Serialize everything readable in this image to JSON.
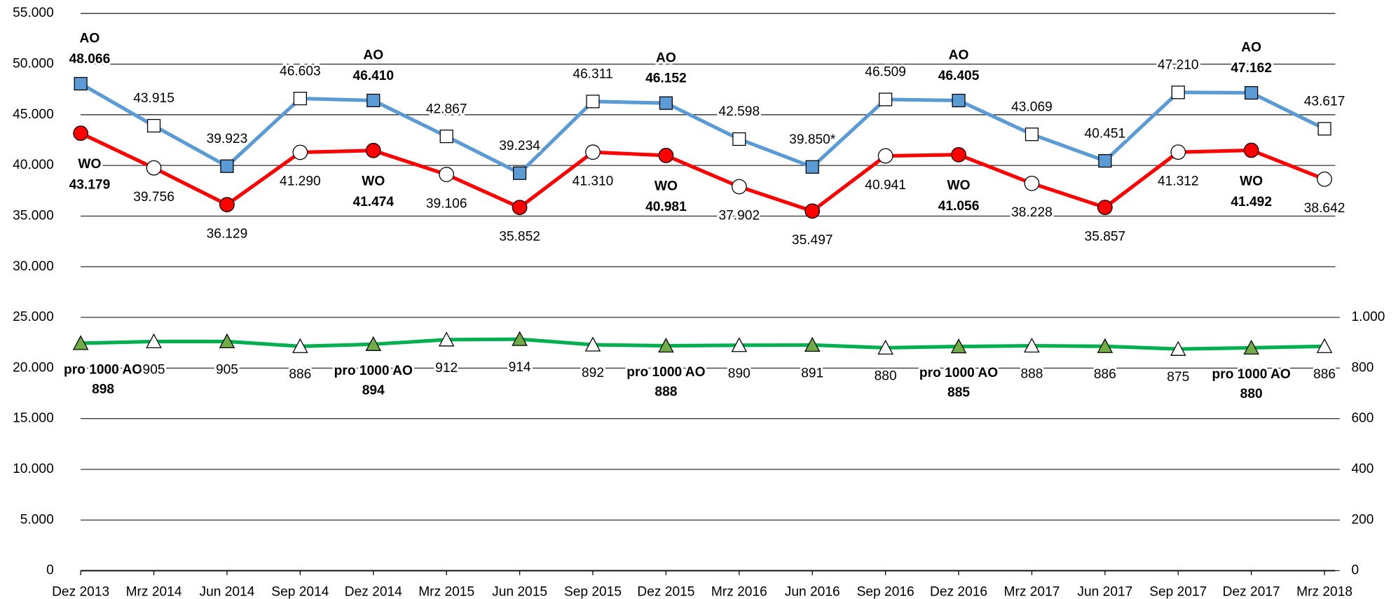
{
  "chart_data": {
    "type": "line",
    "categories": [
      "Dez 2013",
      "Mrz 2014",
      "Jun 2014",
      "Sep 2014",
      "Dez 2014",
      "Mrz 2015",
      "Jun 2015",
      "Sep 2015",
      "Dez 2015",
      "Mrz 2016",
      "Jun 2016",
      "Sep 2016",
      "Dez 2016",
      "Mrz 2017",
      "Jun 2017",
      "Sep 2017",
      "Dez 2017",
      "Mrz 2018"
    ],
    "ylim": [
      0,
      55000
    ],
    "yticks": [
      {
        "value": 0,
        "label": "0"
      },
      {
        "value": 5000,
        "label": "5.000"
      },
      {
        "value": 10000,
        "label": "10.000"
      },
      {
        "value": 15000,
        "label": "15.000"
      },
      {
        "value": 20000,
        "label": "20.000"
      },
      {
        "value": 25000,
        "label": "25.000"
      },
      {
        "value": 30000,
        "label": "30.000"
      },
      {
        "value": 35000,
        "label": "35.000"
      },
      {
        "value": 40000,
        "label": "40.000"
      },
      {
        "value": 45000,
        "label": "45.000"
      },
      {
        "value": 50000,
        "label": "50.000"
      },
      {
        "value": 55000,
        "label": "55.000"
      }
    ],
    "y2lim": [
      0,
      2200
    ],
    "y2ticks": [
      0,
      200,
      400,
      600,
      800,
      {
        "value": 1000,
        "label": "1.000"
      }
    ],
    "grid": true,
    "series": [
      {
        "name": "AO",
        "color": "#5b9bd5",
        "marker": "square",
        "values": [
          48066,
          43915,
          39923,
          46603,
          46410,
          42867,
          39234,
          46311,
          46152,
          42598,
          39850,
          46509,
          46405,
          43069,
          40451,
          47210,
          47162,
          43617
        ],
        "value_labels": [
          "48.066",
          "43.915",
          "39.923",
          "46.603",
          "46.410",
          "42.867",
          "39.234",
          "46.311",
          "46.152",
          "42.598",
          "39.850*",
          "46.509",
          "46.405",
          "43.069",
          "40.451",
          "47.210",
          "47.162",
          "43.617"
        ]
      },
      {
        "name": "WO",
        "color": "#ff0000",
        "marker": "circle",
        "values": [
          43179,
          39756,
          36129,
          41290,
          41474,
          39106,
          35852,
          41310,
          40981,
          37902,
          35497,
          40941,
          41056,
          38228,
          35857,
          41312,
          41492,
          38642
        ],
        "value_labels": [
          "43.179",
          "39.756",
          "36.129",
          "41.290",
          "41.474",
          "39.106",
          "35.852",
          "41.310",
          "40.981",
          "37.902",
          "35.497",
          "40.941",
          "41.056",
          "38.228",
          "35.857",
          "41.312",
          "41.492",
          "38.642"
        ]
      },
      {
        "name": "pro 1000 AO",
        "color": "#00b050",
        "marker_color": "#70ad47",
        "marker": "triangle",
        "axis": "y2",
        "values": [
          898,
          905,
          905,
          886,
          894,
          912,
          914,
          892,
          888,
          890,
          891,
          880,
          885,
          888,
          886,
          875,
          880,
          886
        ]
      }
    ]
  }
}
